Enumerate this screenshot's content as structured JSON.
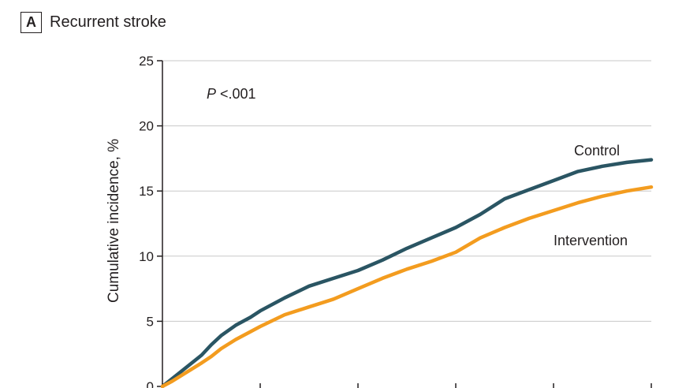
{
  "panel": {
    "letter": "A",
    "title": "Recurrent stroke"
  },
  "chart_data": {
    "type": "line",
    "ylabel": "Cumulative incidence, %",
    "xlabel": "",
    "ylim": [
      0,
      25
    ],
    "yticks": [
      "0",
      "5",
      "10",
      "15",
      "20",
      "25"
    ],
    "xlim": [
      0,
      5
    ],
    "grid": "horizontal",
    "annotation": {
      "italic": "P",
      "text": " <.001"
    },
    "series": [
      {
        "name": "Control",
        "color": "#2a5563",
        "x": [
          0,
          0.1,
          0.25,
          0.4,
          0.5,
          0.6,
          0.75,
          0.9,
          1.0,
          1.25,
          1.5,
          1.75,
          2.0,
          2.25,
          2.5,
          2.75,
          3.0,
          3.25,
          3.5,
          3.75,
          4.0,
          4.25,
          4.5,
          4.75,
          5.0
        ],
        "values": [
          0,
          0.6,
          1.5,
          2.4,
          3.2,
          3.9,
          4.7,
          5.3,
          5.8,
          6.8,
          7.7,
          8.3,
          8.9,
          9.7,
          10.6,
          11.4,
          12.2,
          13.2,
          14.4,
          15.1,
          15.8,
          16.5,
          16.9,
          17.2,
          17.4
        ]
      },
      {
        "name": "Intervention",
        "color": "#f39c1f",
        "x": [
          0,
          0.1,
          0.25,
          0.4,
          0.5,
          0.6,
          0.75,
          0.9,
          1.0,
          1.25,
          1.5,
          1.75,
          2.0,
          2.25,
          2.5,
          2.75,
          3.0,
          3.25,
          3.5,
          3.75,
          4.0,
          4.25,
          4.5,
          4.75,
          5.0
        ],
        "values": [
          0,
          0.4,
          1.1,
          1.8,
          2.3,
          2.9,
          3.6,
          4.2,
          4.6,
          5.5,
          6.1,
          6.7,
          7.5,
          8.3,
          9.0,
          9.6,
          10.3,
          11.4,
          12.2,
          12.9,
          13.5,
          14.1,
          14.6,
          15.0,
          15.3
        ]
      }
    ]
  }
}
